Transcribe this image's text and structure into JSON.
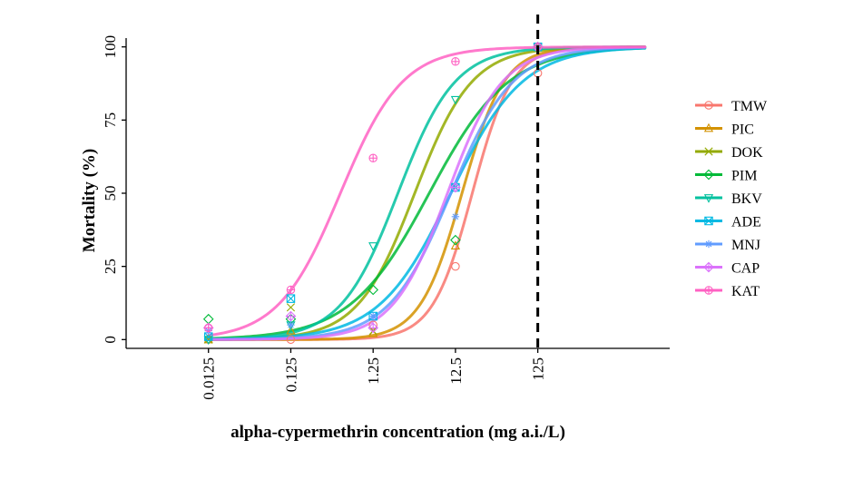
{
  "chart_data": {
    "type": "line",
    "xlabel": "alpha-cypermethrin concentration (mg a.i./L)",
    "ylabel": "Mortality (%)",
    "x_scale": "log10",
    "x_ticks": [
      0.0125,
      0.125,
      1.25,
      12.5,
      125
    ],
    "x_tick_labels": [
      "0.0125",
      "0.125",
      "1.25",
      "12.5",
      "125"
    ],
    "xlim": [
      0.00125,
      5000
    ],
    "y_ticks": [
      0,
      25,
      50,
      75,
      100
    ],
    "y_tick_labels": [
      "0",
      "25",
      "50",
      "75",
      "100"
    ],
    "ylim": [
      -3,
      103
    ],
    "reference_line": {
      "x": 125,
      "style": "dashed",
      "color": "#000000"
    },
    "grid": false,
    "legend_position": "right",
    "series": [
      {
        "name": "TMW",
        "color": "#F8766D",
        "marker": "circle",
        "points": [
          [
            0.0125,
            0
          ],
          [
            0.125,
            0
          ],
          [
            1.25,
            5
          ],
          [
            12.5,
            25
          ],
          [
            125,
            91
          ]
        ],
        "fit": {
          "ec50": 20.0,
          "slope": 1.8
        }
      },
      {
        "name": "PIC",
        "color": "#D39200",
        "marker": "triangle",
        "points": [
          [
            0.0125,
            0
          ],
          [
            0.125,
            3
          ],
          [
            1.25,
            2
          ],
          [
            12.5,
            32
          ],
          [
            125,
            100
          ]
        ],
        "fit": {
          "ec50": 15.0,
          "slope": 1.7
        }
      },
      {
        "name": "DOK",
        "color": "#93AA00",
        "marker": "x",
        "points": [
          [
            0.0125,
            0
          ],
          [
            0.125,
            11
          ],
          [
            1.25,
            3
          ],
          [
            12.5,
            52
          ],
          [
            125,
            100
          ]
        ],
        "fit": {
          "ec50": 4.0,
          "slope": 1.25
        }
      },
      {
        "name": "PIM",
        "color": "#00BA38",
        "marker": "diamond",
        "points": [
          [
            0.0125,
            7
          ],
          [
            0.125,
            7
          ],
          [
            1.25,
            17
          ],
          [
            12.5,
            34
          ],
          [
            125,
            100
          ]
        ],
        "fit": {
          "ec50": 6.0,
          "slope": 0.9
        }
      },
      {
        "name": "BKV",
        "color": "#00C19F",
        "marker": "triangle-down",
        "points": [
          [
            0.0125,
            0
          ],
          [
            0.125,
            5
          ],
          [
            1.25,
            32
          ],
          [
            12.5,
            82
          ],
          [
            125,
            100
          ]
        ],
        "fit": {
          "ec50": 2.5,
          "slope": 1.25
        }
      },
      {
        "name": "ADE",
        "color": "#00B9E3",
        "marker": "square-x",
        "points": [
          [
            0.0125,
            1
          ],
          [
            0.125,
            14
          ],
          [
            1.25,
            8
          ],
          [
            12.5,
            52
          ],
          [
            125,
            100
          ]
        ],
        "fit": {
          "ec50": 11.0,
          "slope": 1.0
        }
      },
      {
        "name": "MNJ",
        "color": "#619CFF",
        "marker": "asterisk",
        "points": [
          [
            0.0125,
            3
          ],
          [
            0.125,
            5
          ],
          [
            1.25,
            8
          ],
          [
            12.5,
            42
          ],
          [
            125,
            100
          ]
        ],
        "fit": {
          "ec50": 11.0,
          "slope": 1.15
        }
      },
      {
        "name": "CAP",
        "color": "#DB72FB",
        "marker": "diamond-plus",
        "points": [
          [
            0.0125,
            4
          ],
          [
            0.125,
            8
          ],
          [
            1.25,
            4
          ],
          [
            12.5,
            52
          ],
          [
            125,
            100
          ]
        ],
        "fit": {
          "ec50": 10.0,
          "slope": 1.3
        }
      },
      {
        "name": "KAT",
        "color": "#FF61C3",
        "marker": "circle-plus",
        "points": [
          [
            0.0125,
            4
          ],
          [
            0.125,
            17
          ],
          [
            1.25,
            62
          ],
          [
            12.5,
            95
          ],
          [
            125,
            100
          ]
        ],
        "fit": {
          "ec50": 0.5,
          "slope": 1.15
        }
      }
    ]
  }
}
